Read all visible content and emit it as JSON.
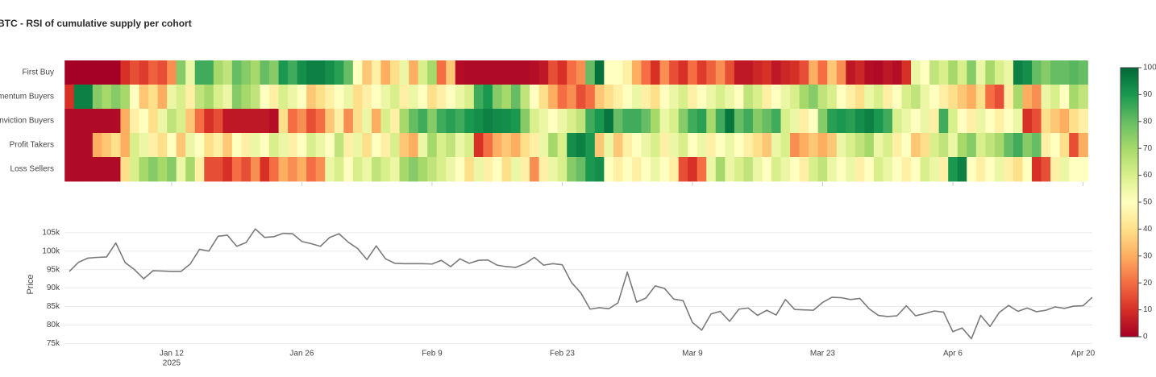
{
  "chart_data": [
    {
      "type": "heatmap",
      "title": "BTC - RSI of cumulative supply per cohort",
      "y": [
        "First Buy",
        "Momentum Buyers",
        "Conviction Buyers",
        "Profit Takers",
        "Loss Sellers"
      ],
      "x": [
        "2025-01-01",
        "2025-01-02",
        "2025-01-03",
        "2025-01-04",
        "2025-01-05",
        "2025-01-06",
        "2025-01-07",
        "2025-01-08",
        "2025-01-09",
        "2025-01-10",
        "2025-01-11",
        "2025-01-12",
        "2025-01-13",
        "2025-01-14",
        "2025-01-15",
        "2025-01-16",
        "2025-01-17",
        "2025-01-18",
        "2025-01-19",
        "2025-01-20",
        "2025-01-21",
        "2025-01-22",
        "2025-01-23",
        "2025-01-24",
        "2025-01-25",
        "2025-01-26",
        "2025-01-27",
        "2025-01-28",
        "2025-01-29",
        "2025-01-30",
        "2025-01-31",
        "2025-02-01",
        "2025-02-02",
        "2025-02-03",
        "2025-02-04",
        "2025-02-05",
        "2025-02-06",
        "2025-02-07",
        "2025-02-08",
        "2025-02-09",
        "2025-02-10",
        "2025-02-11",
        "2025-02-12",
        "2025-02-13",
        "2025-02-14",
        "2025-02-15",
        "2025-02-16",
        "2025-02-17",
        "2025-02-18",
        "2025-02-19",
        "2025-02-20",
        "2025-02-21",
        "2025-02-22",
        "2025-02-23",
        "2025-02-24",
        "2025-02-25",
        "2025-02-26",
        "2025-02-27",
        "2025-02-28",
        "2025-03-01",
        "2025-03-02",
        "2025-03-03",
        "2025-03-04",
        "2025-03-05",
        "2025-03-06",
        "2025-03-07",
        "2025-03-08",
        "2025-03-09",
        "2025-03-10",
        "2025-03-11",
        "2025-03-12",
        "2025-03-13",
        "2025-03-14",
        "2025-03-15",
        "2025-03-16",
        "2025-03-17",
        "2025-03-18",
        "2025-03-19",
        "2025-03-20",
        "2025-03-21",
        "2025-03-22",
        "2025-03-23",
        "2025-03-24",
        "2025-03-25",
        "2025-03-26",
        "2025-03-27",
        "2025-03-28",
        "2025-03-29",
        "2025-03-30",
        "2025-03-31",
        "2025-04-01",
        "2025-04-02",
        "2025-04-03",
        "2025-04-04",
        "2025-04-05",
        "2025-04-06",
        "2025-04-07",
        "2025-04-08",
        "2025-04-09",
        "2025-04-10",
        "2025-04-11",
        "2025-04-12",
        "2025-04-13",
        "2025-04-14",
        "2025-04-15",
        "2025-04-16",
        "2025-04-17",
        "2025-04-18",
        "2025-04-19",
        "2025-04-20"
      ],
      "z": [
        [
          0,
          0,
          0,
          0,
          0,
          0,
          10,
          15,
          12,
          18,
          15,
          25,
          75,
          55,
          85,
          85,
          70,
          65,
          80,
          75,
          70,
          80,
          75,
          90,
          85,
          92,
          95,
          95,
          92,
          88,
          80,
          50,
          35,
          45,
          30,
          40,
          55,
          30,
          60,
          70,
          20,
          35,
          3,
          2,
          2,
          2,
          2,
          2,
          2,
          2,
          3,
          5,
          15,
          10,
          20,
          25,
          80,
          98,
          50,
          50,
          45,
          30,
          20,
          10,
          25,
          15,
          10,
          20,
          12,
          18,
          25,
          15,
          5,
          5,
          8,
          10,
          5,
          8,
          10,
          15,
          30,
          20,
          35,
          25,
          5,
          8,
          3,
          2,
          5,
          3,
          10,
          55,
          50,
          65,
          60,
          70,
          60,
          75,
          55,
          70,
          60,
          55,
          95,
          92,
          80,
          75,
          80,
          80,
          82,
          80
        ],
        [
          10,
          95,
          95,
          75,
          70,
          75,
          70,
          50,
          35,
          40,
          30,
          55,
          60,
          45,
          65,
          70,
          60,
          55,
          75,
          70,
          65,
          50,
          45,
          60,
          55,
          50,
          35,
          40,
          45,
          50,
          55,
          40,
          45,
          50,
          55,
          60,
          45,
          55,
          50,
          40,
          45,
          50,
          55,
          60,
          85,
          90,
          75,
          70,
          80,
          65,
          50,
          40,
          30,
          20,
          25,
          15,
          20,
          35,
          40,
          45,
          50,
          55,
          45,
          40,
          50,
          55,
          60,
          45,
          50,
          55,
          60,
          55,
          50,
          65,
          60,
          45,
          50,
          55,
          60,
          70,
          75,
          65,
          60,
          50,
          45,
          40,
          55,
          60,
          45,
          50,
          60,
          65,
          55,
          50,
          45,
          40,
          35,
          30,
          40,
          20,
          15,
          45,
          70,
          30,
          25,
          55,
          60,
          50,
          70,
          65
        ],
        [
          2,
          2,
          2,
          2,
          2,
          2,
          30,
          45,
          50,
          40,
          55,
          65,
          60,
          35,
          20,
          10,
          15,
          5,
          5,
          5,
          5,
          5,
          3,
          40,
          20,
          25,
          15,
          20,
          35,
          45,
          25,
          40,
          55,
          30,
          60,
          45,
          70,
          80,
          85,
          75,
          85,
          88,
          85,
          90,
          92,
          95,
          93,
          92,
          90,
          75,
          60,
          55,
          50,
          55,
          60,
          65,
          85,
          90,
          97,
          80,
          85,
          85,
          80,
          70,
          55,
          60,
          75,
          85,
          88,
          70,
          85,
          97,
          80,
          85,
          75,
          80,
          85,
          60,
          55,
          45,
          50,
          75,
          88,
          90,
          88,
          92,
          95,
          90,
          85,
          60,
          55,
          50,
          55,
          45,
          85,
          60,
          50,
          45,
          55,
          50,
          45,
          50,
          55,
          10,
          15,
          40,
          35,
          30,
          40,
          45
        ],
        [
          2,
          2,
          2,
          30,
          35,
          40,
          30,
          60,
          55,
          45,
          40,
          50,
          35,
          55,
          50,
          40,
          45,
          35,
          50,
          45,
          55,
          50,
          60,
          55,
          45,
          50,
          60,
          55,
          50,
          65,
          45,
          55,
          40,
          50,
          45,
          60,
          35,
          30,
          55,
          70,
          60,
          65,
          55,
          60,
          10,
          20,
          30,
          35,
          30,
          40,
          45,
          55,
          70,
          60,
          92,
          95,
          90,
          35,
          55,
          35,
          45,
          50,
          55,
          60,
          45,
          55,
          60,
          50,
          55,
          45,
          50,
          55,
          50,
          45,
          40,
          35,
          55,
          60,
          25,
          30,
          35,
          30,
          35,
          55,
          60,
          65,
          70,
          55,
          60,
          45,
          50,
          35,
          40,
          60,
          65,
          55,
          70,
          75,
          60,
          65,
          70,
          80,
          85,
          75,
          80,
          45,
          50,
          40,
          15,
          30
        ],
        [
          2,
          2,
          2,
          2,
          2,
          2,
          40,
          60,
          70,
          75,
          70,
          75,
          55,
          70,
          45,
          15,
          15,
          10,
          20,
          15,
          25,
          10,
          20,
          30,
          25,
          30,
          20,
          25,
          55,
          60,
          50,
          60,
          55,
          65,
          60,
          55,
          70,
          75,
          70,
          65,
          60,
          55,
          50,
          40,
          55,
          45,
          50,
          40,
          55,
          45,
          25,
          45,
          55,
          60,
          75,
          80,
          90,
          92,
          50,
          45,
          50,
          45,
          50,
          55,
          50,
          45,
          15,
          10,
          20,
          55,
          70,
          55,
          60,
          65,
          55,
          50,
          60,
          55,
          50,
          45,
          60,
          65,
          55,
          50,
          55,
          45,
          50,
          60,
          55,
          50,
          45,
          50,
          60,
          55,
          45,
          90,
          95,
          50,
          45,
          50,
          55,
          45,
          40,
          50,
          10,
          15,
          45,
          55,
          50,
          50
        ]
      ],
      "zlim": [
        0,
        100
      ],
      "zticks": [
        0,
        10,
        20,
        30,
        40,
        50,
        60,
        70,
        80,
        90,
        100
      ],
      "colorscale": [
        "#a50026",
        "#d73027",
        "#f46d43",
        "#fdae61",
        "#fee08b",
        "#ffffbf",
        "#d9ef8b",
        "#a6d96a",
        "#66bd63",
        "#1a9850",
        "#006837"
      ]
    },
    {
      "type": "line",
      "ylabel": "Price",
      "color": "#7a7a7a",
      "grid": true,
      "x": [
        "2025-01-01",
        "2025-01-02",
        "2025-01-03",
        "2025-01-04",
        "2025-01-05",
        "2025-01-06",
        "2025-01-07",
        "2025-01-08",
        "2025-01-09",
        "2025-01-10",
        "2025-01-11",
        "2025-01-12",
        "2025-01-13",
        "2025-01-14",
        "2025-01-15",
        "2025-01-16",
        "2025-01-17",
        "2025-01-18",
        "2025-01-19",
        "2025-01-20",
        "2025-01-21",
        "2025-01-22",
        "2025-01-23",
        "2025-01-24",
        "2025-01-25",
        "2025-01-26",
        "2025-01-27",
        "2025-01-28",
        "2025-01-29",
        "2025-01-30",
        "2025-01-31",
        "2025-02-01",
        "2025-02-02",
        "2025-02-03",
        "2025-02-04",
        "2025-02-05",
        "2025-02-06",
        "2025-02-07",
        "2025-02-08",
        "2025-02-09",
        "2025-02-10",
        "2025-02-11",
        "2025-02-12",
        "2025-02-13",
        "2025-02-14",
        "2025-02-15",
        "2025-02-16",
        "2025-02-17",
        "2025-02-18",
        "2025-02-19",
        "2025-02-20",
        "2025-02-21",
        "2025-02-22",
        "2025-02-23",
        "2025-02-24",
        "2025-02-25",
        "2025-02-26",
        "2025-02-27",
        "2025-02-28",
        "2025-03-01",
        "2025-03-02",
        "2025-03-03",
        "2025-03-04",
        "2025-03-05",
        "2025-03-06",
        "2025-03-07",
        "2025-03-08",
        "2025-03-09",
        "2025-03-10",
        "2025-03-11",
        "2025-03-12",
        "2025-03-13",
        "2025-03-14",
        "2025-03-15",
        "2025-03-16",
        "2025-03-17",
        "2025-03-18",
        "2025-03-19",
        "2025-03-20",
        "2025-03-21",
        "2025-03-22",
        "2025-03-23",
        "2025-03-24",
        "2025-03-25",
        "2025-03-26",
        "2025-03-27",
        "2025-03-28",
        "2025-03-29",
        "2025-03-30",
        "2025-03-31",
        "2025-04-01",
        "2025-04-02",
        "2025-04-03",
        "2025-04-04",
        "2025-04-05",
        "2025-04-06",
        "2025-04-07",
        "2025-04-08",
        "2025-04-09",
        "2025-04-10",
        "2025-04-11",
        "2025-04-12",
        "2025-04-13",
        "2025-04-14",
        "2025-04-15",
        "2025-04-16",
        "2025-04-17",
        "2025-04-18",
        "2025-04-19",
        "2025-04-20",
        "2025-04-21"
      ],
      "values": [
        94500,
        97000,
        98100,
        98300,
        98400,
        102200,
        96900,
        95000,
        92500,
        94700,
        94600,
        94500,
        94500,
        96500,
        100500,
        100000,
        104000,
        104300,
        101300,
        102300,
        106000,
        103700,
        103900,
        104800,
        104700,
        102600,
        102000,
        101300,
        103700,
        104700,
        102400,
        100700,
        97700,
        101400,
        97900,
        96700,
        96600,
        96600,
        96600,
        96500,
        97500,
        95800,
        97900,
        96700,
        97500,
        97600,
        96200,
        95800,
        95600,
        96600,
        98300,
        96200,
        96600,
        96300,
        91500,
        88700,
        84300,
        84700,
        84400,
        86000,
        94300,
        86200,
        87300,
        90600,
        89900,
        87000,
        86600,
        80700,
        78600,
        83000,
        83700,
        81000,
        84300,
        84600,
        82600,
        84000,
        82700,
        86900,
        84200,
        84100,
        84000,
        86100,
        87500,
        87400,
        86900,
        87200,
        84400,
        82600,
        82300,
        82500,
        85200,
        82500,
        83100,
        83800,
        83500,
        78200,
        79200,
        76300,
        82600,
        79600,
        83400,
        85300,
        83700,
        84600,
        83600,
        84000,
        84900,
        84500,
        85100,
        85200,
        87500
      ],
      "xlim": [
        "2025-01-01",
        "2025-04-21"
      ],
      "xticks": [
        {
          "value": "2025-01-12",
          "label": "Jan 12"
        },
        {
          "value": "2025-01-26",
          "label": "Jan 26"
        },
        {
          "value": "2025-02-09",
          "label": "Feb 9"
        },
        {
          "value": "2025-02-23",
          "label": "Feb 23"
        },
        {
          "value": "2025-03-09",
          "label": "Mar 9"
        },
        {
          "value": "2025-03-23",
          "label": "Mar 23"
        },
        {
          "value": "2025-04-06",
          "label": "Apr 6"
        },
        {
          "value": "2025-04-20",
          "label": "Apr 20"
        }
      ],
      "x_year": "2025",
      "ylim": [
        74000,
        108000
      ],
      "yticks": [
        {
          "value": 75000,
          "label": "75k"
        },
        {
          "value": 80000,
          "label": "80k"
        },
        {
          "value": 85000,
          "label": "85k"
        },
        {
          "value": 90000,
          "label": "90k"
        },
        {
          "value": 95000,
          "label": "95k"
        },
        {
          "value": 100000,
          "label": "100k"
        },
        {
          "value": 105000,
          "label": "105k"
        }
      ]
    }
  ]
}
